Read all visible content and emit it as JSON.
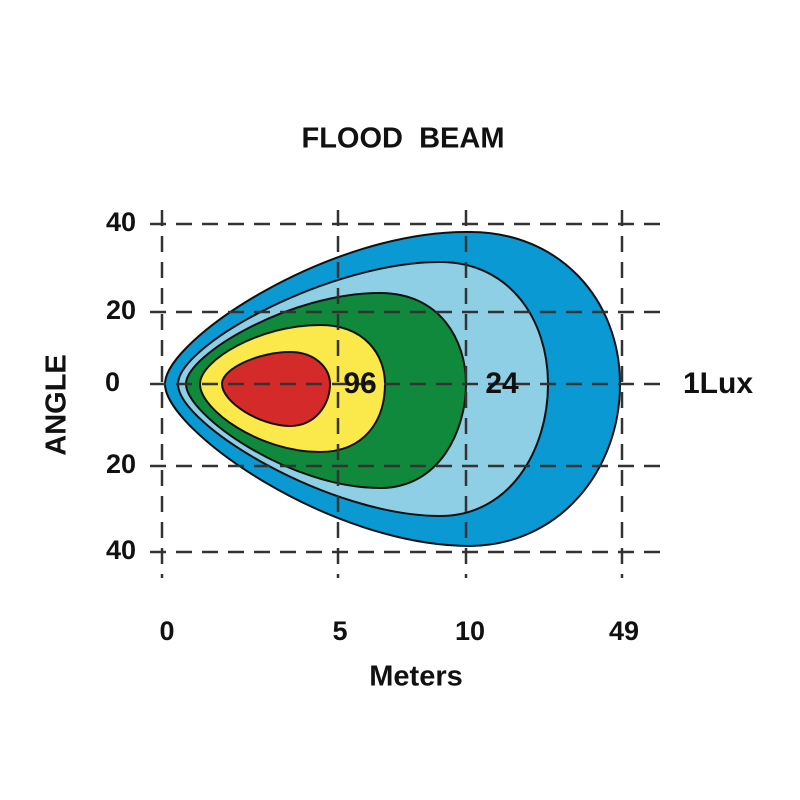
{
  "title": "FLOOD  BEAM",
  "y_axis": {
    "label": "ANGLE",
    "ticks": [
      "40",
      "20",
      "0",
      "20",
      "40"
    ]
  },
  "x_axis": {
    "label": "Meters",
    "ticks": [
      "0",
      "5",
      "10",
      "49"
    ]
  },
  "zones": [
    "96",
    "24",
    "1Lux"
  ]
}
